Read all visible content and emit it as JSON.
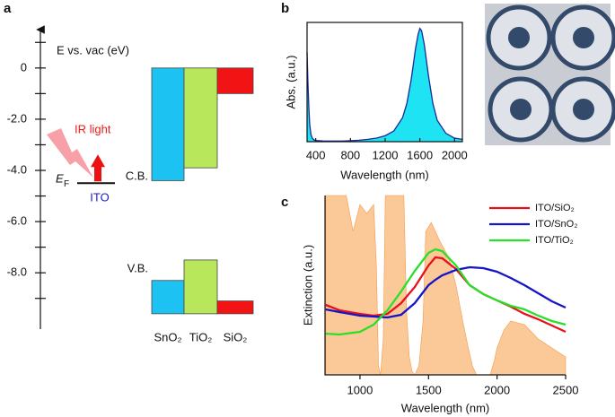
{
  "chart_data": [
    {
      "type": "band-diagram",
      "label": "a",
      "ylabel": "E vs. vac (eV)",
      "ylim": [
        -10.2,
        1.5
      ],
      "yticks": [
        0,
        {
          "value": -2,
          "label": "-2.0"
        },
        {
          "value": -4,
          "label": "-4.0"
        },
        {
          "value": -6,
          "label": "-6.0"
        },
        {
          "value": -8,
          "label": "-8.0"
        }
      ],
      "minor_yticks": [
        1,
        -1,
        -3,
        -5,
        -7,
        -9
      ],
      "categories": [
        "SnO₂",
        "TiO₂",
        "SiO₂"
      ],
      "colors": [
        "#1cc3f2",
        "#b9e75c",
        "#f21414"
      ],
      "series": [
        {
          "name": "C.B.",
          "values": [
            -4.4,
            -3.9,
            -1.0
          ]
        },
        {
          "name": "V.B.",
          "values": [
            -8.3,
            -7.5,
            -9.1
          ]
        }
      ],
      "fermi_level": -4.5,
      "fermi_label": "ITO",
      "fermi_symbol": "E",
      "fermi_subscript": "F",
      "annotation": "IR light"
    },
    {
      "type": "area",
      "label": "b",
      "xlabel": "Wavelength (nm)",
      "ylabel": "Abs. (a.u.)",
      "xlim": [
        300,
        2090
      ],
      "ylim": [
        0,
        1
      ],
      "xticks": [
        400,
        800,
        1200,
        1600,
        2000
      ],
      "color": "#1de3f2",
      "line_color": "#1a2a9a",
      "x": [
        300,
        310,
        320,
        330,
        345,
        360,
        380,
        400,
        500,
        600,
        700,
        800,
        900,
        1000,
        1100,
        1200,
        1300,
        1400,
        1450,
        1500,
        1550,
        1580,
        1600,
        1620,
        1650,
        1700,
        1750,
        1800,
        1900,
        2000,
        2090
      ],
      "values": [
        0.75,
        0.5,
        0.3,
        0.15,
        0.06,
        0.03,
        0.015,
        0.01,
        0.005,
        0.005,
        0.005,
        0.008,
        0.012,
        0.02,
        0.03,
        0.05,
        0.09,
        0.2,
        0.32,
        0.52,
        0.78,
        0.9,
        0.95,
        0.93,
        0.82,
        0.55,
        0.32,
        0.18,
        0.07,
        0.03,
        0.02
      ]
    },
    {
      "type": "line",
      "label": "c",
      "xlabel": "Wavelength (nm)",
      "ylabel": "Extinction (a.u.)",
      "xlim": [
        745,
        2500
      ],
      "ylim": [
        0,
        1
      ],
      "xticks": [
        1000,
        1500,
        2000,
        2500
      ],
      "x": [
        750,
        850,
        1000,
        1100,
        1200,
        1300,
        1400,
        1500,
        1550,
        1600,
        1700,
        1800,
        1900,
        2000,
        2100,
        2200,
        2300,
        2400,
        2500
      ],
      "series": [
        {
          "name": "ITO/SiO₂",
          "color": "#e8101a",
          "values": [
            0.39,
            0.36,
            0.34,
            0.33,
            0.34,
            0.4,
            0.49,
            0.61,
            0.655,
            0.65,
            0.59,
            0.5,
            0.45,
            0.415,
            0.38,
            0.34,
            0.31,
            0.275,
            0.24
          ]
        },
        {
          "name": "ITO/SnO₂",
          "color": "#1515c8",
          "values": [
            0.365,
            0.35,
            0.33,
            0.325,
            0.32,
            0.335,
            0.4,
            0.5,
            0.53,
            0.555,
            0.585,
            0.6,
            0.595,
            0.575,
            0.54,
            0.5,
            0.455,
            0.41,
            0.375
          ]
        },
        {
          "name": "ITO/TiO₂",
          "color": "#28e028",
          "values": [
            0.23,
            0.225,
            0.24,
            0.28,
            0.36,
            0.465,
            0.58,
            0.68,
            0.7,
            0.69,
            0.61,
            0.5,
            0.45,
            0.415,
            0.385,
            0.365,
            0.33,
            0.3,
            0.28
          ]
        }
      ],
      "spectrum": {
        "color": "#fbc898",
        "x": [
          750,
          800,
          900,
          950,
          1000,
          1050,
          1100,
          1120,
          1135,
          1150,
          1170,
          1185,
          1250,
          1320,
          1340,
          1360,
          1380,
          1400,
          1430,
          1460,
          1480,
          1520,
          1580,
          1650,
          1700,
          1750,
          1790,
          1820,
          1850,
          1950,
          1980,
          2000,
          2050,
          2100,
          2200,
          2300,
          2400,
          2500
        ],
        "values": [
          1,
          1,
          1,
          0.8,
          0.95,
          0.9,
          0.95,
          0.6,
          0.05,
          0,
          0.2,
          1,
          1,
          1,
          0.35,
          0.1,
          0.02,
          0,
          0.05,
          0.3,
          0.8,
          0.85,
          0.75,
          0.65,
          0.5,
          0.3,
          0.15,
          0.05,
          0,
          0,
          0.08,
          0.15,
          0.25,
          0.3,
          0.28,
          0.2,
          0.15,
          0.1
        ]
      }
    }
  ]
}
